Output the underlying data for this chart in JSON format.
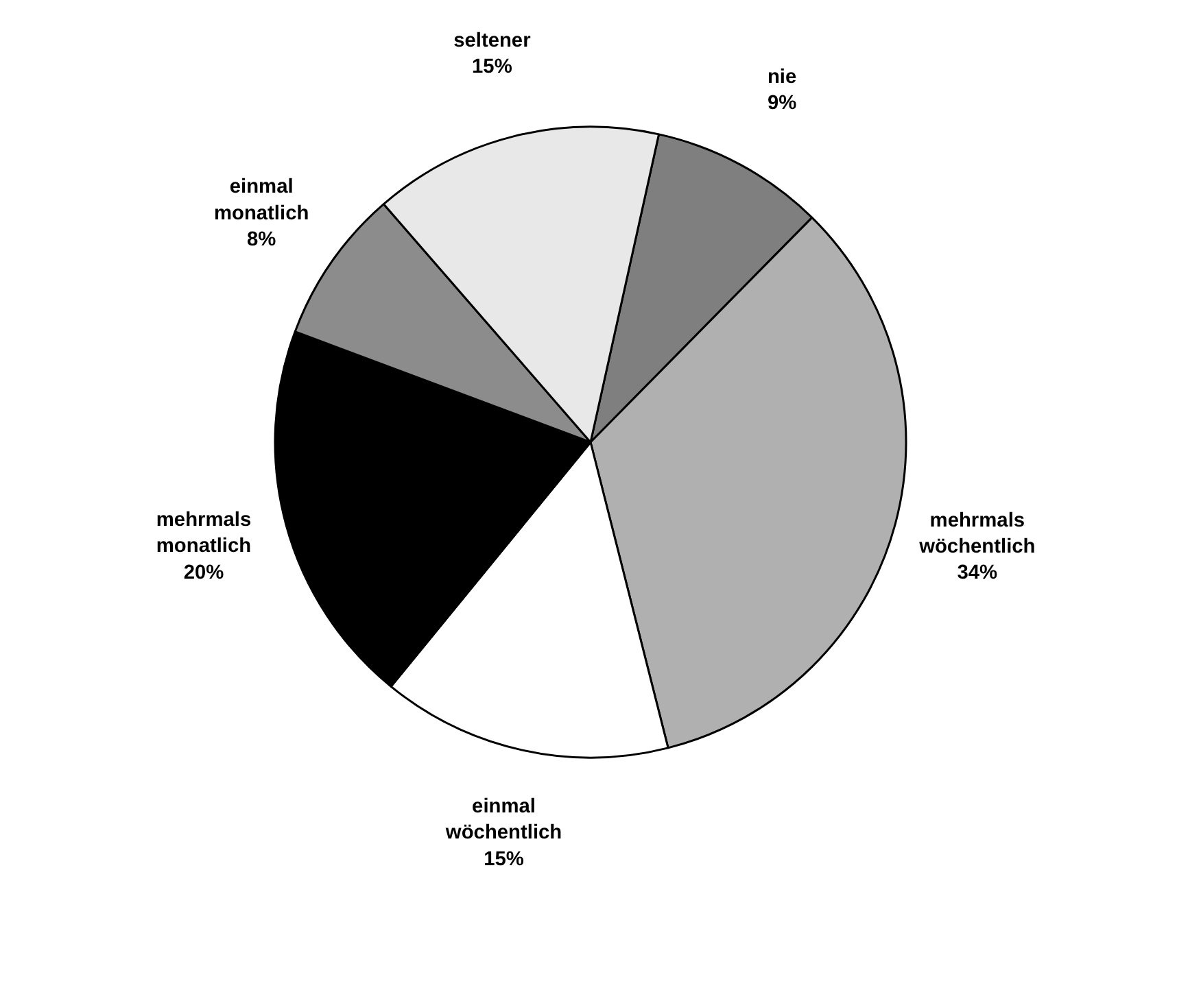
{
  "chart_data": {
    "type": "pie",
    "categories": [
      "nie",
      "mehrmals wöchentlich",
      "einmal wöchentlich",
      "mehrmals monatlich",
      "einmal monatlich",
      "seltener"
    ],
    "values": [
      9,
      34,
      15,
      20,
      8,
      15
    ],
    "value_labels": [
      "9%",
      "34%",
      "15%",
      "20%",
      "8%",
      "15%"
    ],
    "colors": [
      "#7f7f7f",
      "#b0b0b0",
      "#ffffff",
      "#000000",
      "#8c8c8c",
      "#e8e8e8"
    ]
  }
}
